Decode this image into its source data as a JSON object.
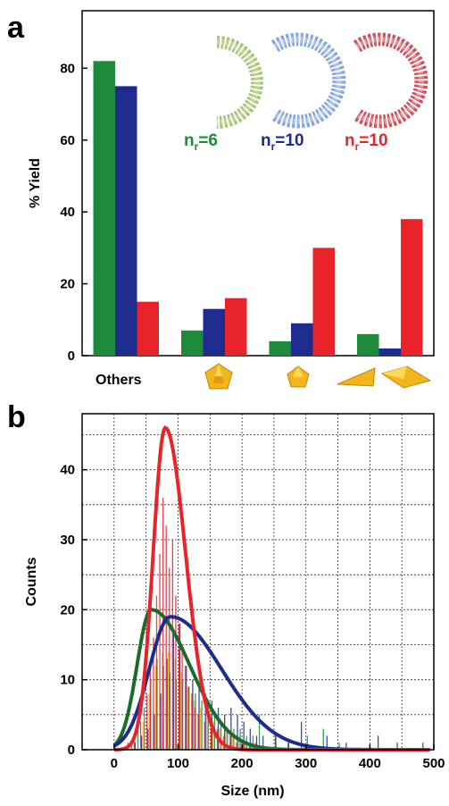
{
  "colors": {
    "green": "#1e8a3c",
    "blue": "#1f2c8f",
    "red": "#e8232a",
    "gold": "#f2b51c",
    "dkgreen": "#1c6b2a"
  },
  "chart_data": [
    {
      "panel": "a",
      "type": "bar",
      "ylabel": "% Yield",
      "ylim": [
        0,
        96
      ],
      "yticks": [
        0,
        20,
        40,
        60,
        80
      ],
      "categories": [
        "Others",
        "",
        "",
        ""
      ],
      "category_icons": [
        "",
        "pentagonal-bipyramid-icon",
        "pentagon-particle-icon",
        "triangular-plate-icon"
      ],
      "series": [
        {
          "label_main": "n",
          "label_sub": "r",
          "label_rest": "=6",
          "color": "green",
          "values": [
            82,
            7,
            4,
            6
          ]
        },
        {
          "label_main": "n",
          "label_sub": "r",
          "label_rest": "=10",
          "color": "blue",
          "values": [
            75,
            13,
            9,
            2
          ]
        },
        {
          "label_main": "n",
          "label_sub": "r",
          "label_rest": "=10",
          "color": "red",
          "values": [
            15,
            16,
            30,
            38
          ]
        }
      ],
      "grid": false
    },
    {
      "panel": "b",
      "type": "bar",
      "xlabel": "Size (nm)",
      "ylabel": "Counts",
      "xlim": [
        -50,
        500
      ],
      "ylim": [
        0,
        48
      ],
      "xticks": [
        0,
        100,
        200,
        300,
        400,
        500
      ],
      "yticks": [
        0,
        10,
        20,
        30,
        40
      ],
      "grid": true,
      "histogram_bin_width": 5,
      "series": [
        {
          "color": "red",
          "bins": [
            [
              20,
              1
            ],
            [
              30,
              2
            ],
            [
              40,
              4
            ],
            [
              50,
              8
            ],
            [
              55,
              12
            ],
            [
              60,
              16
            ],
            [
              65,
              22
            ],
            [
              70,
              28
            ],
            [
              75,
              36
            ],
            [
              80,
              32
            ],
            [
              85,
              26
            ],
            [
              90,
              30
            ],
            [
              95,
              22
            ],
            [
              100,
              18
            ],
            [
              105,
              14
            ],
            [
              110,
              12
            ],
            [
              115,
              9
            ],
            [
              120,
              8
            ],
            [
              125,
              6
            ],
            [
              130,
              5
            ],
            [
              140,
              4
            ],
            [
              150,
              3
            ],
            [
              160,
              3
            ],
            [
              170,
              2
            ],
            [
              180,
              2
            ],
            [
              190,
              1
            ],
            [
              200,
              1
            ],
            [
              210,
              1
            ],
            [
              220,
              1
            ]
          ],
          "fit": {
            "mu": 80,
            "sigma_lo": 19,
            "sigma_hi": 32,
            "peak": 46
          }
        },
        {
          "color": "blue",
          "bins": [
            [
              30,
              1
            ],
            [
              40,
              2
            ],
            [
              50,
              3
            ],
            [
              60,
              5
            ],
            [
              70,
              8
            ],
            [
              80,
              13
            ],
            [
              90,
              17
            ],
            [
              100,
              18
            ],
            [
              110,
              12
            ],
            [
              120,
              10
            ],
            [
              130,
              9
            ],
            [
              140,
              8
            ],
            [
              150,
              7
            ],
            [
              160,
              6
            ],
            [
              170,
              5
            ],
            [
              180,
              6
            ],
            [
              190,
              5
            ],
            [
              200,
              4
            ],
            [
              210,
              3
            ],
            [
              220,
              2
            ],
            [
              230,
              2
            ],
            [
              250,
              2
            ],
            [
              270,
              1
            ],
            [
              290,
              4
            ],
            [
              330,
              2
            ],
            [
              360,
              1
            ],
            [
              410,
              2
            ],
            [
              440,
              1
            ],
            [
              480,
              1
            ]
          ],
          "fit": {
            "mu": 88,
            "sigma_lo": 33,
            "sigma_hi": 80,
            "peak": 19
          }
        },
        {
          "color": "green",
          "bins": [
            [
              25,
              1
            ],
            [
              35,
              3
            ],
            [
              45,
              6
            ],
            [
              55,
              10
            ],
            [
              65,
              13
            ],
            [
              75,
              12
            ],
            [
              85,
              11
            ],
            [
              95,
              10
            ],
            [
              105,
              10
            ],
            [
              115,
              9
            ],
            [
              125,
              8
            ],
            [
              135,
              7
            ],
            [
              145,
              6
            ],
            [
              155,
              5
            ],
            [
              165,
              4
            ],
            [
              175,
              3
            ],
            [
              185,
              3
            ],
            [
              195,
              3
            ],
            [
              205,
              2
            ],
            [
              215,
              2
            ],
            [
              225,
              5
            ],
            [
              250,
              2
            ],
            [
              270,
              1
            ],
            [
              300,
              2
            ],
            [
              325,
              3
            ],
            [
              350,
              1
            ]
          ],
          "fit": {
            "mu": 58,
            "sigma_lo": 22,
            "sigma_hi": 60,
            "peak": 20
          }
        },
        {
          "color": "gold",
          "bins": [
            [
              45,
              4
            ],
            [
              55,
              8
            ],
            [
              65,
              12
            ],
            [
              75,
              14
            ],
            [
              85,
              14
            ],
            [
              95,
              13
            ],
            [
              105,
              11
            ],
            [
              115,
              9
            ],
            [
              125,
              7
            ],
            [
              135,
              6
            ],
            [
              145,
              5
            ],
            [
              155,
              4
            ],
            [
              165,
              3
            ],
            [
              175,
              3
            ],
            [
              185,
              2
            ],
            [
              195,
              2
            ],
            [
              205,
              1
            ],
            [
              215,
              1
            ]
          ],
          "fit": null
        }
      ]
    }
  ]
}
